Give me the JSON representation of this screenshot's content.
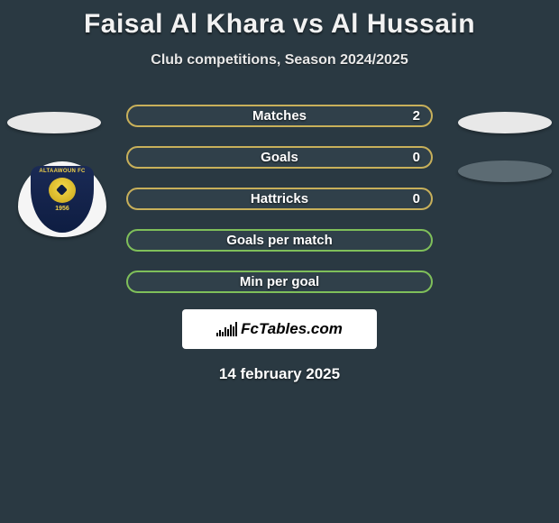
{
  "title": "Faisal Al Khara vs Al Hussain",
  "subtitle": "Club competitions, Season 2024/2025",
  "bars": [
    {
      "label": "Matches",
      "value": "2",
      "fill": "#30404a",
      "border": "#c8b05a"
    },
    {
      "label": "Goals",
      "value": "0",
      "fill": "#30404a",
      "border": "#c8b05a"
    },
    {
      "label": "Hattricks",
      "value": "0",
      "fill": "#30404a",
      "border": "#c8b05a"
    },
    {
      "label": "Goals per match",
      "value": "",
      "fill": "#30404a",
      "border": "#7fbf5a"
    },
    {
      "label": "Min per goal",
      "value": "",
      "fill": "#30404a",
      "border": "#7fbf5a"
    }
  ],
  "brand": "FcTables.com",
  "date": "14 february 2025",
  "badge": {
    "top": "ALTAAWOUN FC",
    "year": "1956"
  }
}
